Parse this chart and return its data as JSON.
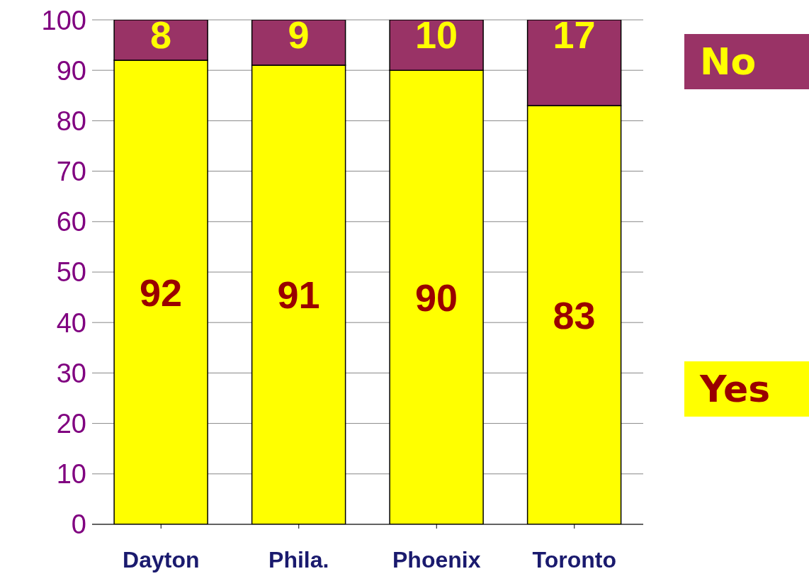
{
  "chart_data": {
    "type": "bar",
    "stacked": true,
    "categories": [
      "Dayton",
      "Phila.",
      "Phoenix",
      "Toronto"
    ],
    "series": [
      {
        "name": "Yes",
        "color": "#ffff00",
        "values": [
          92,
          91,
          90,
          83
        ]
      },
      {
        "name": "No",
        "color": "#993366",
        "values": [
          8,
          9,
          10,
          17
        ]
      }
    ],
    "ylim": [
      0,
      100
    ],
    "yticks": [
      0,
      10,
      20,
      30,
      40,
      50,
      60,
      70,
      80,
      90,
      100
    ],
    "grid": "y",
    "legend": "right",
    "data_labels": true
  }
}
